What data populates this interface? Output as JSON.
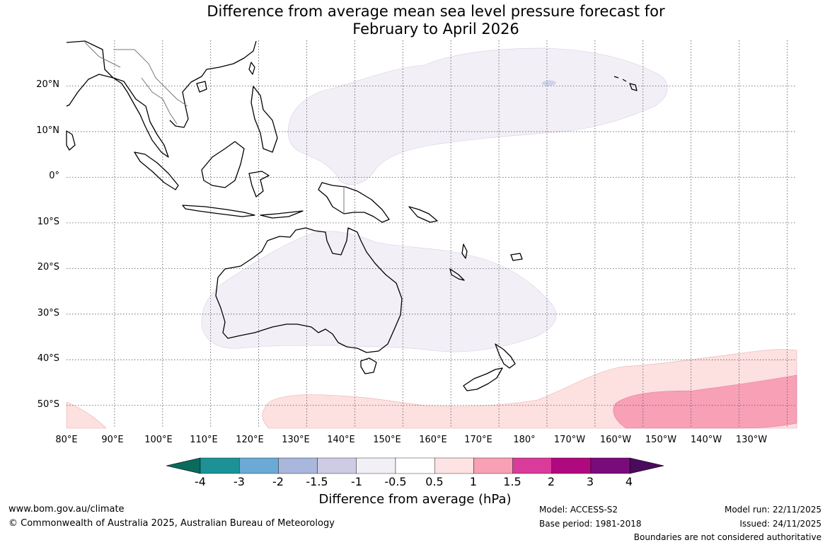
{
  "title": {
    "line1": "Difference from average mean sea level pressure forecast for",
    "line2": "February to April 2026"
  },
  "map": {
    "projection": "equirectangular",
    "lon_range": [
      80,
      232
    ],
    "lat_range": [
      -55,
      30
    ],
    "lat_labels": [
      "20°N",
      "10°N",
      "0°",
      "10°S",
      "20°S",
      "30°S",
      "40°S",
      "50°S"
    ],
    "lon_labels": [
      "80°E",
      "90°E",
      "100°E",
      "110°E",
      "120°E",
      "130°E",
      "140°E",
      "150°E",
      "160°E",
      "170°E",
      "180°",
      "170°W",
      "160°W",
      "150°W",
      "140°W",
      "130°W"
    ],
    "gridlines": "dotted",
    "anomaly_regions": [
      {
        "name": "north-pacific-weak-negative",
        "category": "-0.5 to 0"
      },
      {
        "name": "australia-weak-negative",
        "category": "-0.5 to 0"
      },
      {
        "name": "southern-ocean-positive",
        "category": "0.5 to 1"
      },
      {
        "name": "southeast-pacific-positive",
        "category": "1 to 1.5"
      }
    ]
  },
  "colorbar": {
    "ticks": [
      "-4",
      "-3",
      "-2",
      "-1.5",
      "-1",
      "-0.5",
      "0.5",
      "1",
      "1.5",
      "2",
      "3",
      "4"
    ],
    "colors": [
      "#0a6b5c",
      "#1c9296",
      "#6aaad4",
      "#a8b7db",
      "#cdcce4",
      "#f3eff7",
      "#ffffff",
      "#fde3e3",
      "#f8a0b6",
      "#da3b9a",
      "#b0087e",
      "#7a0b7a",
      "#4a0a5e"
    ],
    "label": "Difference from average (hPa)"
  },
  "footer": {
    "website": "www.bom.gov.au/climate",
    "copyright": "© Commonwealth of Australia 2025, Australian Bureau of Meteorology",
    "model": "Model: ACCESS-S2",
    "base_period": "Base period: 1981-2018",
    "model_run": "Model run: 22/11/2025",
    "issued": "Issued: 24/11/2025",
    "disclaimer": "Boundaries are not considered authoritative"
  }
}
